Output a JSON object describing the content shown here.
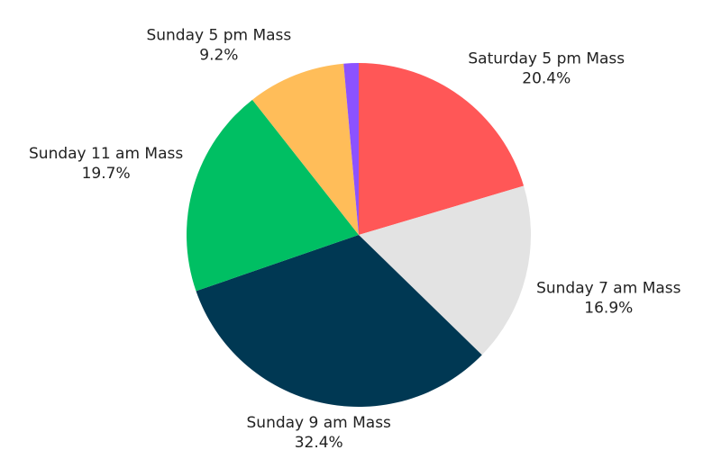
{
  "chart_data": {
    "type": "pie",
    "categories": [
      "Saturday 5 pm Mass",
      "Sunday 7 am Mass",
      "Sunday 9 am Mass",
      "Sunday 11 am Mass",
      "Sunday 5 pm Mass",
      null
    ],
    "values": [
      20.4,
      16.9,
      32.4,
      19.7,
      9.2,
      1.4
    ],
    "value_labels": [
      "20.4%",
      "16.9%",
      "32.4%",
      "19.7%",
      "9.2%",
      null
    ],
    "colors": [
      "#ff5757",
      "#e3e3e3",
      "#003853",
      "#00bf63",
      "#ffbd59",
      "#8c52ff"
    ]
  }
}
